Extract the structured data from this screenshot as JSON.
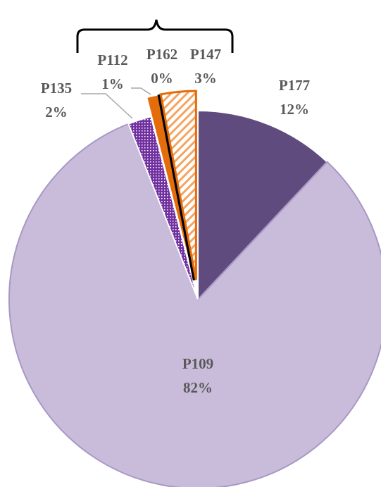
{
  "chart_data": {
    "type": "pie",
    "categories": [
      "P177",
      "P109",
      "P135",
      "P112",
      "P162",
      "P147"
    ],
    "values": [
      12,
      82,
      2,
      1,
      0,
      3
    ],
    "value_labels": [
      "12%",
      "82%",
      "2%",
      "1%",
      "0%",
      "3%"
    ],
    "colors": [
      "#5f4b7e",
      "#c9bcdb",
      "#7030a0",
      "#e46c0a",
      "#000000",
      "#f4a460"
    ]
  }
}
